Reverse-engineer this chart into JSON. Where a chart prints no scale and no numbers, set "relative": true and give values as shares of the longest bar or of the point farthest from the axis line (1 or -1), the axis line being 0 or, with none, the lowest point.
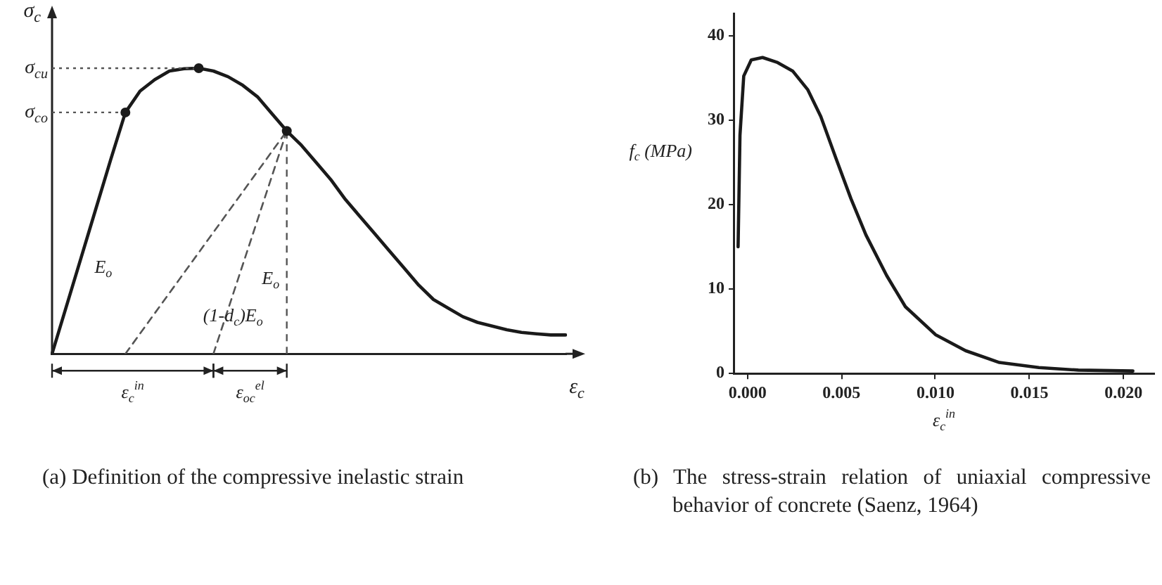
{
  "chart_data": [
    {
      "type": "line",
      "title": "(a) Definition of the compressive inelastic strain",
      "xlabel": "ε$_{c}$",
      "ylabel": "σ$_{c}$",
      "relative": true,
      "categories": [
        null,
        null,
        null,
        null,
        null,
        null,
        null,
        null,
        null,
        null,
        null,
        null,
        null,
        null,
        null,
        null,
        null,
        null,
        null,
        null,
        null,
        null,
        null,
        null,
        null,
        null,
        null,
        null,
        null,
        null,
        null,
        null,
        null,
        null,
        null,
        null
      ],
      "series": [
        {
          "color": "#1a1a1a",
          "values": [
            0,
            0.17,
            0.34,
            0.51,
            0.68,
            0.845,
            0.92,
            0.96,
            0.99,
            0.998,
            1,
            0.99,
            0.97,
            0.94,
            0.9,
            0.84,
            0.78,
            0.73,
            0.67,
            0.61,
            0.54,
            0.48,
            0.42,
            0.36,
            0.3,
            0.24,
            0.19,
            0.16,
            0.13,
            0.11,
            0.097,
            0.084,
            0.075,
            0.07,
            0.066,
            0.066
          ]
        },
        {
          "color": "#555555",
          "line_style": "dashed",
          "values": [
            null,
            null,
            null,
            null,
            null,
            0,
            null,
            null,
            null,
            null,
            null,
            null,
            null,
            null,
            null,
            null,
            0.78,
            null,
            null,
            null,
            null,
            null,
            null,
            null,
            null,
            null,
            null,
            null,
            null,
            null,
            null,
            null,
            null,
            null,
            null,
            null
          ]
        },
        {
          "color": "#555555",
          "line_style": "dashed",
          "values": [
            null,
            null,
            null,
            null,
            null,
            null,
            null,
            null,
            null,
            null,
            null,
            0,
            null,
            null,
            null,
            null,
            0.78,
            null,
            null,
            null,
            null,
            null,
            null,
            null,
            null,
            null,
            null,
            null,
            null,
            null,
            null,
            null,
            null,
            null,
            null,
            null
          ]
        }
      ],
      "annotations": [
        "σ$_{cu}$",
        "σ$_{co}$",
        "E$_{o}$",
        "E$_{o}$",
        "(1-d$_{c}$)E$_{o}$",
        "ε$_{c}$$^{in}$",
        "ε$_{oc}$$^{el}$"
      ]
    },
    {
      "type": "line",
      "title": "(b) The stress-strain relation of uniaxial compressive behavior of concrete (Saenz, 1964)",
      "xlabel": "ε$_{c}$$^{in}$",
      "ylabel": "f$_{c}$ (MPa)",
      "color": "#1a1a1a",
      "x": [
        -0.0005,
        -0.0004,
        -0.0002,
        0.0002,
        0.0008,
        0.0016,
        0.0024,
        0.0032,
        0.0039,
        0.0047,
        0.0055,
        0.0063,
        0.0074,
        0.0084,
        0.01,
        0.0116,
        0.0134,
        0.0155,
        0.0176,
        0.0205
      ],
      "values": [
        15,
        28.2,
        35.2,
        37.1,
        37.4,
        36.8,
        35.8,
        33.6,
        30.4,
        25.5,
        20.7,
        16.4,
        11.6,
        7.9,
        4.6,
        2.7,
        1.3,
        0.7,
        0.4,
        0.3
      ],
      "xlim": [
        -0.0007,
        0.0216
      ],
      "ylim": [
        0,
        42.5
      ],
      "xticks": [
        {
          "value": 0,
          "label": "0.000"
        },
        {
          "value": 0.005,
          "label": "0.005"
        },
        {
          "value": 0.01,
          "label": "0.010"
        },
        {
          "value": 0.015,
          "label": "0.015"
        },
        {
          "value": 0.02,
          "label": "0.020"
        }
      ],
      "yticks": [
        0,
        10,
        20,
        30,
        40
      ]
    }
  ]
}
